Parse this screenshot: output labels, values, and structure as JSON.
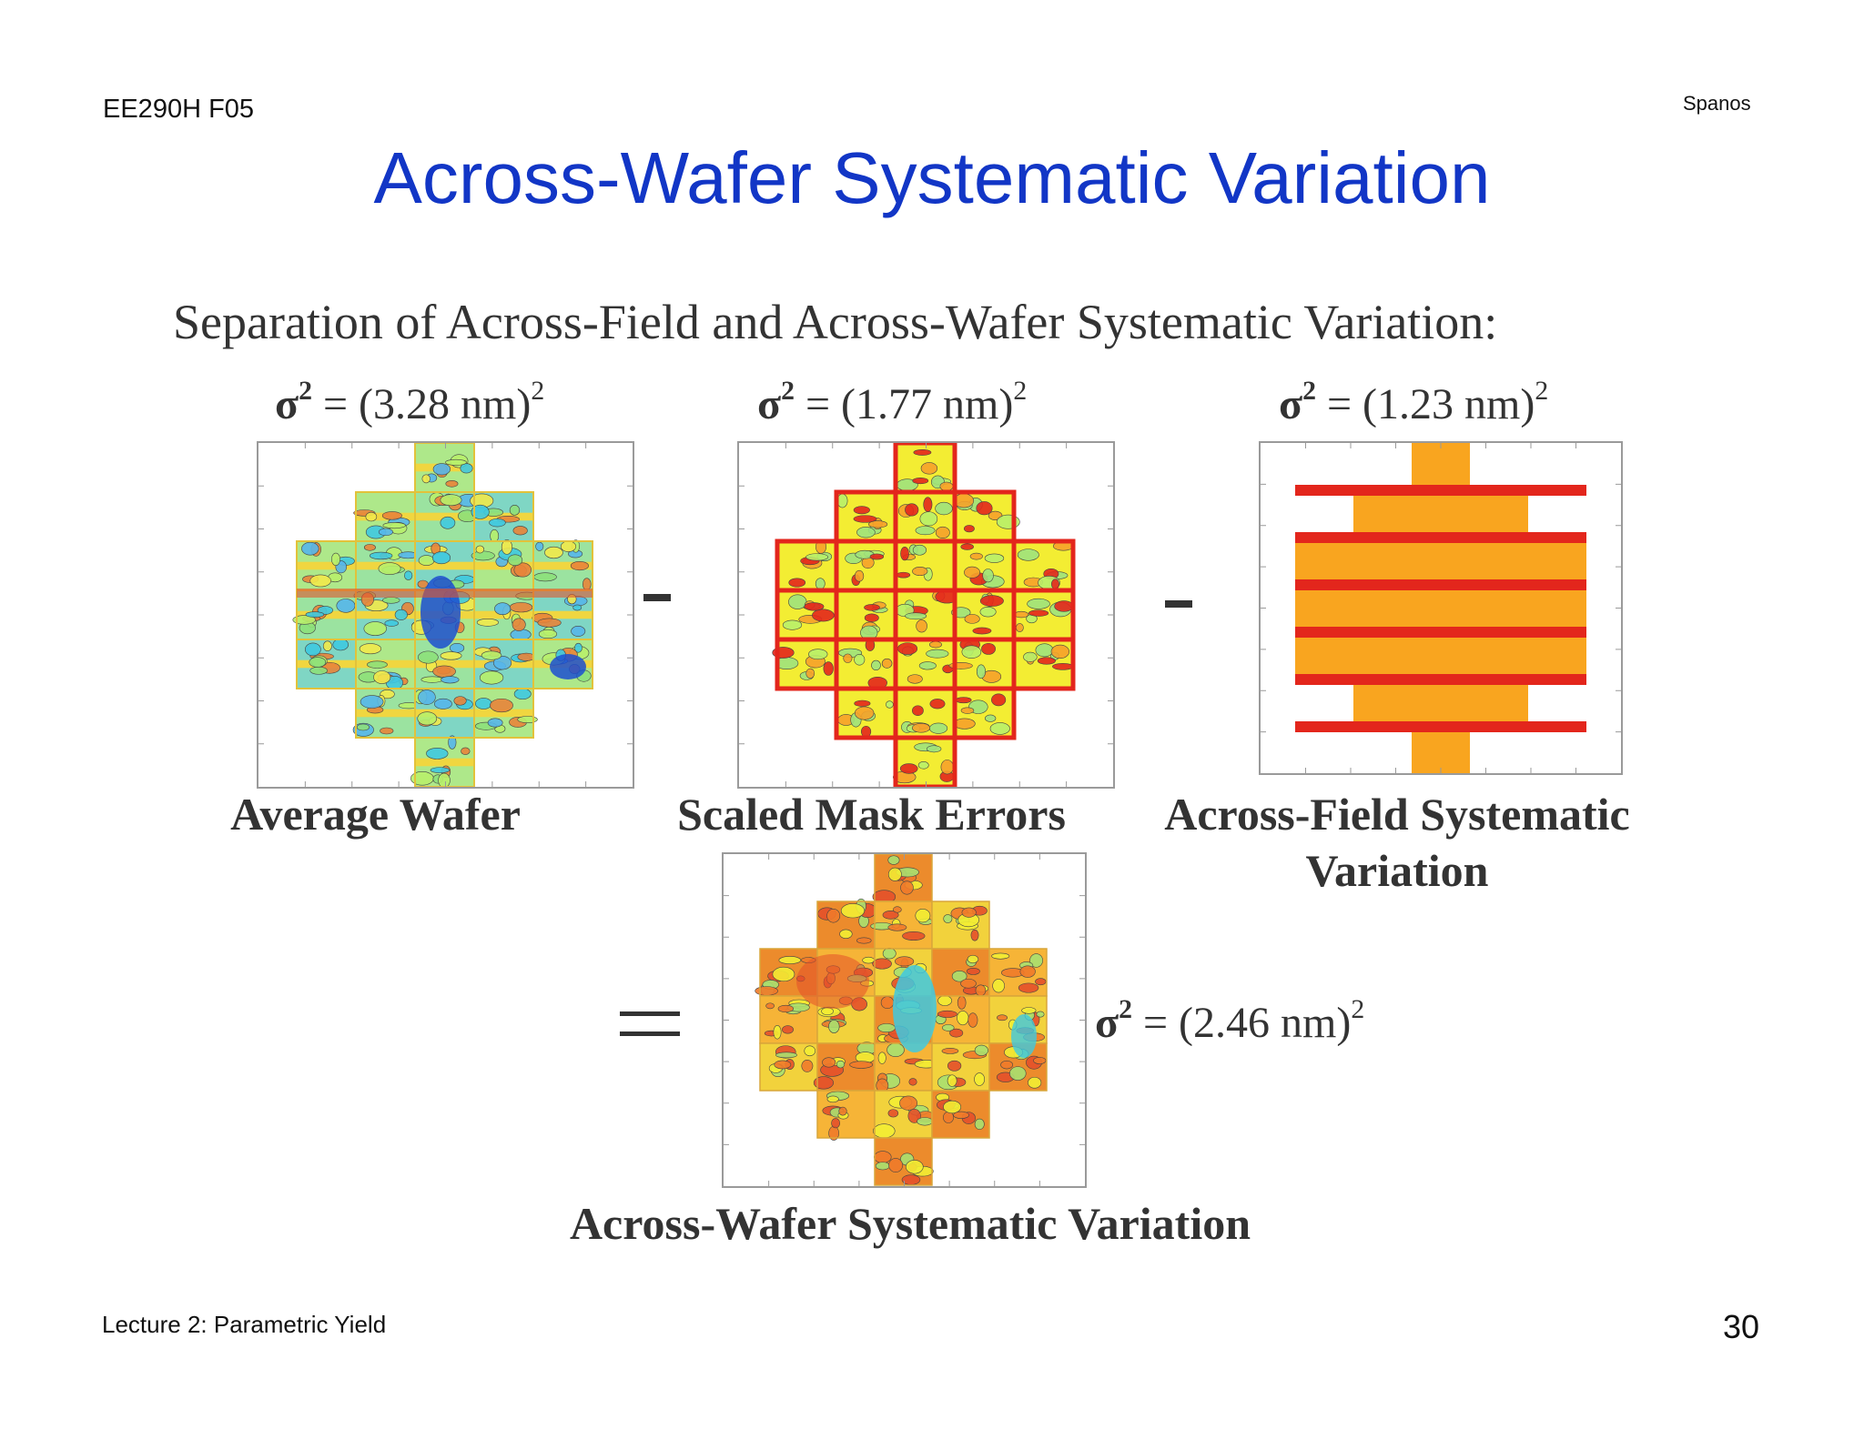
{
  "header": {
    "course": "EE290H F05",
    "author": "Spanos"
  },
  "title": "Across-Wafer Systematic Variation",
  "subtitle": "Separation of Across-Field and Across-Wafer Systematic Variation:",
  "panels": [
    {
      "sigma_prefix": "σ",
      "sigma_exp": "2",
      "sigma_value": " = (3.28 nm)",
      "sigma_value_exp": "2",
      "caption": "Average Wafer"
    },
    {
      "sigma_prefix": "σ",
      "sigma_exp": "2",
      "sigma_value": " = (1.77 nm)",
      "sigma_value_exp": "2",
      "caption": "Scaled Mask Errors"
    },
    {
      "sigma_prefix": "σ",
      "sigma_exp": "2",
      "sigma_value": " = (1.23 nm)",
      "sigma_value_exp": "2",
      "caption_line1": "Across-Field Systematic",
      "caption_line2": "Variation"
    },
    {
      "sigma_prefix": "σ",
      "sigma_exp": "2",
      "sigma_value": " = (2.46 nm)",
      "sigma_value_exp": "2",
      "caption": "Across-Wafer Systematic Variation"
    }
  ],
  "footer": {
    "lecture": "Lecture 2: Parametric Yield",
    "page": "30"
  }
}
